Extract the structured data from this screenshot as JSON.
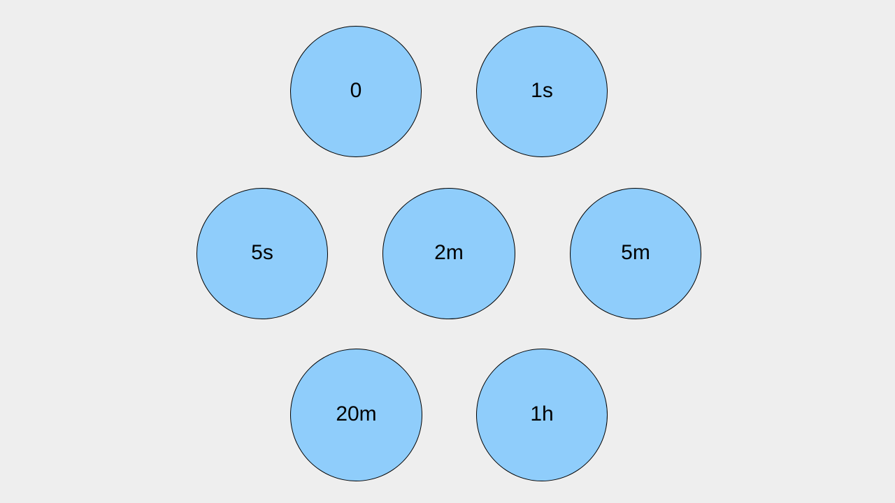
{
  "colors": {
    "background": "#eeeeee",
    "node_fill": "#8fcdfb",
    "node_stroke": "#000000",
    "text": "#000000"
  },
  "nodes": [
    {
      "label": "0"
    },
    {
      "label": "1s"
    },
    {
      "label": "5s"
    },
    {
      "label": "2m"
    },
    {
      "label": "5m"
    },
    {
      "label": "20m"
    },
    {
      "label": "1h"
    }
  ]
}
